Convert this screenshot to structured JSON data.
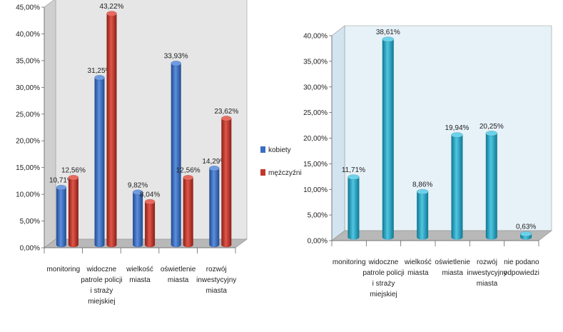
{
  "chart_data": [
    {
      "type": "bar",
      "ylim": [
        0,
        45
      ],
      "yticks": [
        "0,00%",
        "5,00%",
        "10,00%",
        "15,00%",
        "20,00%",
        "25,00%",
        "30,00%",
        "35,00%",
        "40,00%",
        "45,00%"
      ],
      "categories": [
        [
          "monitoring"
        ],
        [
          "widoczne",
          "patrole policji",
          "i straży",
          "miejskiej"
        ],
        [
          "wielkość",
          "miasta"
        ],
        [
          "oświetlenie",
          "miasta"
        ],
        [
          "rozwój",
          "inwestycyjny",
          "miasta"
        ]
      ],
      "series": [
        {
          "name": "kobiety",
          "color": "#3a6fc4",
          "values": [
            10.71,
            31.25,
            9.82,
            33.93,
            14.29
          ],
          "labels": [
            "10,71%",
            "31,25%",
            "9,82%",
            "33,93%",
            "14,29%"
          ]
        },
        {
          "name": "mężczyźni",
          "color": "#c0392b",
          "values": [
            12.56,
            43.22,
            8.04,
            12.56,
            23.62
          ],
          "labels": [
            "12,56%",
            "43,22%",
            "8,04%",
            "12,56%",
            "23,62%"
          ]
        }
      ],
      "legend": "right",
      "background": "#e6e6e6"
    },
    {
      "type": "bar",
      "ylim": [
        0,
        40
      ],
      "yticks": [
        "0,00%",
        "5,00%",
        "10,00%",
        "15,00%",
        "20,00%",
        "25,00%",
        "30,00%",
        "35,00%",
        "40,00%"
      ],
      "categories": [
        [
          "monitoring"
        ],
        [
          "widoczne",
          "patrole policji",
          "i straży",
          "miejskiej"
        ],
        [
          "wielkość",
          "miasta"
        ],
        [
          "oświetlenie",
          "miasta"
        ],
        [
          "rozwój",
          "inwestycyjny",
          "miasta"
        ],
        [
          "nie podano",
          "odpowiedzi"
        ]
      ],
      "series": [
        {
          "color": "#27a3c4",
          "values": [
            11.71,
            38.61,
            8.86,
            19.94,
            20.25,
            0.63
          ],
          "labels": [
            "11,71%",
            "38,61%",
            "8,86%",
            "19,94%",
            "20,25%",
            "0,63%"
          ]
        }
      ],
      "background": "#e6f1f8"
    }
  ]
}
